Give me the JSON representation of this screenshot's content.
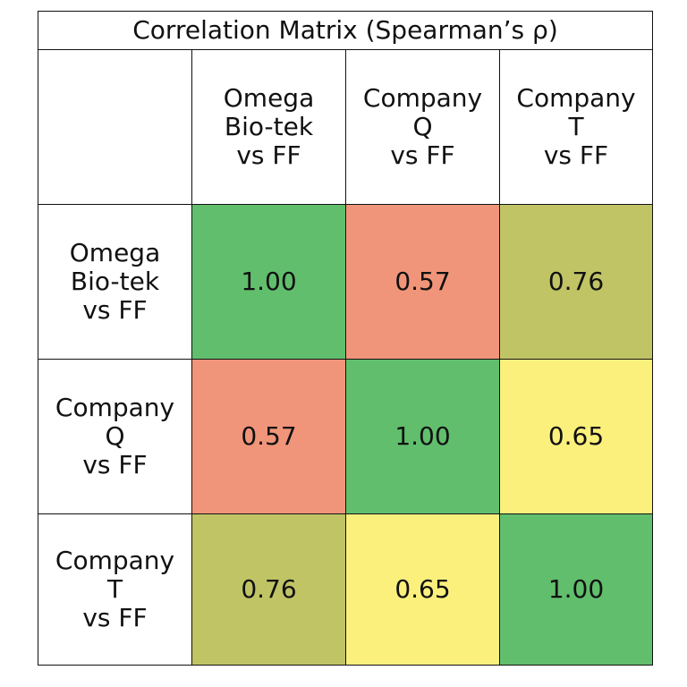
{
  "chart_data": {
    "type": "heatmap",
    "title": "Correlation Matrix (Spearman’s ρ)",
    "row_labels": [
      [
        "Omega",
        "Bio-tek",
        "vs FF"
      ],
      [
        "Company",
        "Q",
        "vs FF"
      ],
      [
        "Company",
        "T",
        "vs FF"
      ]
    ],
    "col_labels": [
      [
        "Omega",
        "Bio-tek",
        "vs FF"
      ],
      [
        "Company",
        "Q",
        "vs FF"
      ],
      [
        "Company",
        "T",
        "vs FF"
      ]
    ],
    "values": [
      [
        1.0,
        0.57,
        0.76
      ],
      [
        0.57,
        1.0,
        0.65
      ],
      [
        0.76,
        0.65,
        1.0
      ]
    ],
    "display_values": [
      [
        "1.00",
        "0.57",
        "0.76"
      ],
      [
        "0.57",
        "1.00",
        "0.65"
      ],
      [
        "0.76",
        "0.65",
        "1.00"
      ]
    ],
    "cell_colors": [
      [
        "#61be6d",
        "#f09579",
        "#c0c465"
      ],
      [
        "#f09579",
        "#61be6d",
        "#fcf07d"
      ],
      [
        "#c0c465",
        "#fcf07d",
        "#61be6d"
      ]
    ],
    "colors": {
      "border": "#111111",
      "background": "#ffffff"
    }
  }
}
